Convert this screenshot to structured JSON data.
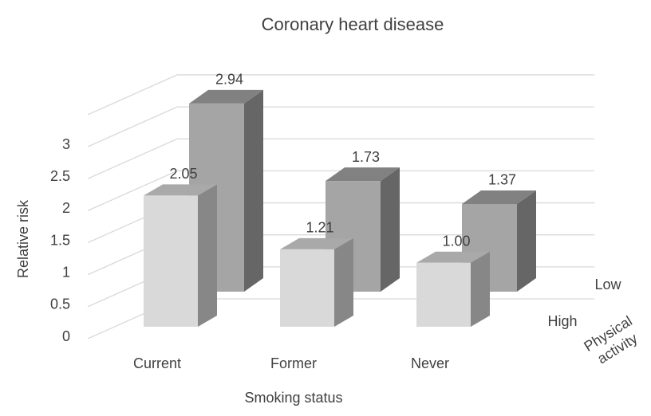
{
  "chart_data": {
    "type": "bar3d",
    "title": "Coronary heart disease",
    "y_label": "Relative risk",
    "x_label": "Smoking status",
    "z_label": "Physical activity",
    "categories": [
      "Current",
      "Former",
      "Never"
    ],
    "series": [
      {
        "name": "High",
        "color": "#d9d9d9",
        "values": [
          2.05,
          1.21,
          1.0
        ],
        "value_labels": [
          "2.05",
          "1.21",
          "1.00"
        ]
      },
      {
        "name": "Low",
        "color": "#a5a5a5",
        "values": [
          2.94,
          1.73,
          1.37
        ],
        "value_labels": [
          "2.94",
          "1.73",
          "1.37"
        ]
      }
    ],
    "ylim": [
      0,
      3.5
    ],
    "yticks": [
      0,
      0.5,
      1,
      1.5,
      2,
      2.5,
      3
    ],
    "grid": true
  }
}
